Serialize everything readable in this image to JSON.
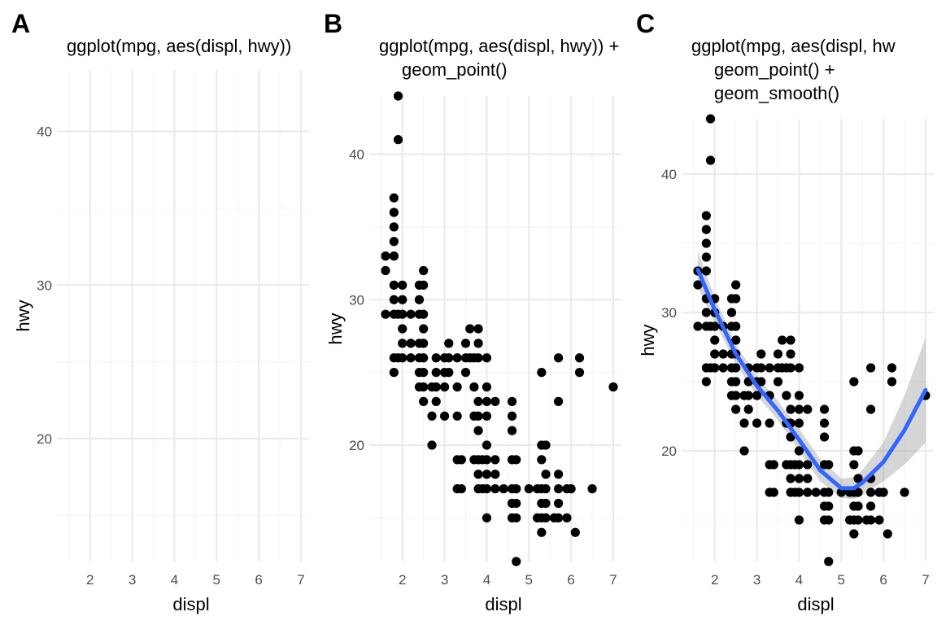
{
  "chart_data": [
    {
      "panel": "A",
      "type": "scatter",
      "title_lines": [
        "ggplot(mpg, aes(displ, hwy))"
      ],
      "xlabel": "displ",
      "ylabel": "hwy",
      "xlim": [
        1.6,
        7
      ],
      "ylim": [
        12,
        44
      ],
      "x_ticks": [
        2,
        3,
        4,
        5,
        6,
        7
      ],
      "y_ticks": [
        20,
        30,
        40
      ],
      "grid": true,
      "points": [],
      "smooth": null
    },
    {
      "panel": "B",
      "type": "scatter",
      "title_lines": [
        "ggplot(mpg, aes(displ, hwy)) +",
        "geom_point()"
      ],
      "xlabel": "displ",
      "ylabel": "hwy",
      "xlim": [
        1.6,
        7
      ],
      "ylim": [
        12,
        44
      ],
      "x_ticks": [
        2,
        3,
        4,
        5,
        6,
        7
      ],
      "y_ticks": [
        20,
        30,
        40
      ],
      "grid": true,
      "point_color": "#000000",
      "points": [
        [
          1.6,
          32
        ],
        [
          1.6,
          33
        ],
        [
          1.6,
          29
        ],
        [
          1.8,
          29
        ],
        [
          1.8,
          31
        ],
        [
          1.8,
          33
        ],
        [
          1.8,
          34
        ],
        [
          1.8,
          35
        ],
        [
          1.8,
          36
        ],
        [
          1.8,
          37
        ],
        [
          1.8,
          25
        ],
        [
          1.8,
          26
        ],
        [
          1.8,
          30
        ],
        [
          1.9,
          44
        ],
        [
          1.9,
          41
        ],
        [
          1.9,
          26
        ],
        [
          1.9,
          29
        ],
        [
          2.0,
          26
        ],
        [
          2.0,
          27
        ],
        [
          2.0,
          28
        ],
        [
          2.0,
          29
        ],
        [
          2.0,
          30
        ],
        [
          2.0,
          31
        ],
        [
          2.2,
          26
        ],
        [
          2.2,
          27
        ],
        [
          2.2,
          29
        ],
        [
          2.4,
          24
        ],
        [
          2.4,
          25
        ],
        [
          2.4,
          26
        ],
        [
          2.4,
          27
        ],
        [
          2.4,
          29
        ],
        [
          2.4,
          30
        ],
        [
          2.4,
          31
        ],
        [
          2.5,
          23
        ],
        [
          2.5,
          24
        ],
        [
          2.5,
          25
        ],
        [
          2.5,
          26
        ],
        [
          2.5,
          27
        ],
        [
          2.5,
          28
        ],
        [
          2.5,
          29
        ],
        [
          2.5,
          31
        ],
        [
          2.5,
          32
        ],
        [
          2.7,
          20
        ],
        [
          2.7,
          22
        ],
        [
          2.7,
          24
        ],
        [
          2.8,
          23
        ],
        [
          2.8,
          24
        ],
        [
          2.8,
          25
        ],
        [
          2.8,
          26
        ],
        [
          3.0,
          22
        ],
        [
          3.0,
          24
        ],
        [
          3.0,
          25
        ],
        [
          3.0,
          26
        ],
        [
          3.1,
          25
        ],
        [
          3.1,
          26
        ],
        [
          3.1,
          27
        ],
        [
          3.3,
          17
        ],
        [
          3.3,
          19
        ],
        [
          3.3,
          22
        ],
        [
          3.3,
          24
        ],
        [
          3.3,
          26
        ],
        [
          3.4,
          17
        ],
        [
          3.4,
          19
        ],
        [
          3.5,
          25
        ],
        [
          3.5,
          26
        ],
        [
          3.5,
          27
        ],
        [
          3.6,
          26
        ],
        [
          3.6,
          28
        ],
        [
          3.7,
          19
        ],
        [
          3.7,
          22
        ],
        [
          3.7,
          24
        ],
        [
          3.7,
          26
        ],
        [
          3.8,
          17
        ],
        [
          3.8,
          18
        ],
        [
          3.8,
          19
        ],
        [
          3.8,
          21
        ],
        [
          3.8,
          22
        ],
        [
          3.8,
          23
        ],
        [
          3.8,
          26
        ],
        [
          3.8,
          27
        ],
        [
          3.8,
          28
        ],
        [
          3.9,
          17
        ],
        [
          3.9,
          19
        ],
        [
          4.0,
          15
        ],
        [
          4.0,
          17
        ],
        [
          4.0,
          18
        ],
        [
          4.0,
          19
        ],
        [
          4.0,
          20
        ],
        [
          4.0,
          22
        ],
        [
          4.0,
          23
        ],
        [
          4.0,
          24
        ],
        [
          4.0,
          26
        ],
        [
          4.2,
          17
        ],
        [
          4.2,
          18
        ],
        [
          4.2,
          19
        ],
        [
          4.2,
          23
        ],
        [
          4.4,
          17
        ],
        [
          4.6,
          15
        ],
        [
          4.6,
          16
        ],
        [
          4.6,
          17
        ],
        [
          4.6,
          19
        ],
        [
          4.6,
          21
        ],
        [
          4.6,
          22
        ],
        [
          4.6,
          23
        ],
        [
          4.7,
          12
        ],
        [
          4.7,
          15
        ],
        [
          4.7,
          16
        ],
        [
          4.7,
          17
        ],
        [
          4.7,
          19
        ],
        [
          5.0,
          17
        ],
        [
          5.2,
          15
        ],
        [
          5.2,
          17
        ],
        [
          5.3,
          14
        ],
        [
          5.3,
          15
        ],
        [
          5.3,
          16
        ],
        [
          5.3,
          17
        ],
        [
          5.3,
          19
        ],
        [
          5.3,
          20
        ],
        [
          5.3,
          25
        ],
        [
          5.4,
          15
        ],
        [
          5.4,
          16
        ],
        [
          5.4,
          17
        ],
        [
          5.4,
          18
        ],
        [
          5.4,
          20
        ],
        [
          5.6,
          15
        ],
        [
          5.7,
          15
        ],
        [
          5.7,
          16
        ],
        [
          5.7,
          17
        ],
        [
          5.7,
          18
        ],
        [
          5.7,
          23
        ],
        [
          5.7,
          26
        ],
        [
          5.9,
          15
        ],
        [
          5.9,
          17
        ],
        [
          6.0,
          17
        ],
        [
          6.1,
          14
        ],
        [
          6.2,
          25
        ],
        [
          6.2,
          26
        ],
        [
          6.5,
          17
        ],
        [
          7.0,
          24
        ]
      ],
      "smooth": null
    },
    {
      "panel": "C",
      "type": "scatter",
      "title_lines": [
        "ggplot(mpg, aes(displ, hw",
        "geom_point() +",
        "geom_smooth()"
      ],
      "xlabel": "displ",
      "ylabel": "hwy",
      "xlim": [
        1.6,
        7
      ],
      "ylim": [
        12,
        44
      ],
      "x_ticks": [
        2,
        3,
        4,
        5,
        6,
        7
      ],
      "y_ticks": [
        20,
        30,
        40
      ],
      "grid": true,
      "point_color": "#000000",
      "points": "same_as_B",
      "smooth": {
        "color": "#3366FF",
        "band_color": "#999999",
        "x": [
          1.6,
          2.0,
          2.5,
          3.0,
          3.5,
          4.0,
          4.5,
          5.0,
          5.3,
          5.5,
          6.0,
          6.5,
          7.0
        ],
        "y": [
          33.1,
          30.2,
          27.0,
          24.7,
          22.9,
          20.8,
          18.6,
          17.3,
          17.3,
          17.7,
          19.2,
          21.5,
          24.4
        ],
        "lower": [
          31.8,
          29.3,
          26.3,
          24.0,
          22.2,
          20.0,
          17.8,
          16.6,
          16.5,
          16.8,
          17.8,
          19.0,
          20.6
        ],
        "upper": [
          34.4,
          31.1,
          27.7,
          25.4,
          23.6,
          21.6,
          19.4,
          18.0,
          18.1,
          18.6,
          20.6,
          24.0,
          28.2
        ]
      }
    }
  ]
}
